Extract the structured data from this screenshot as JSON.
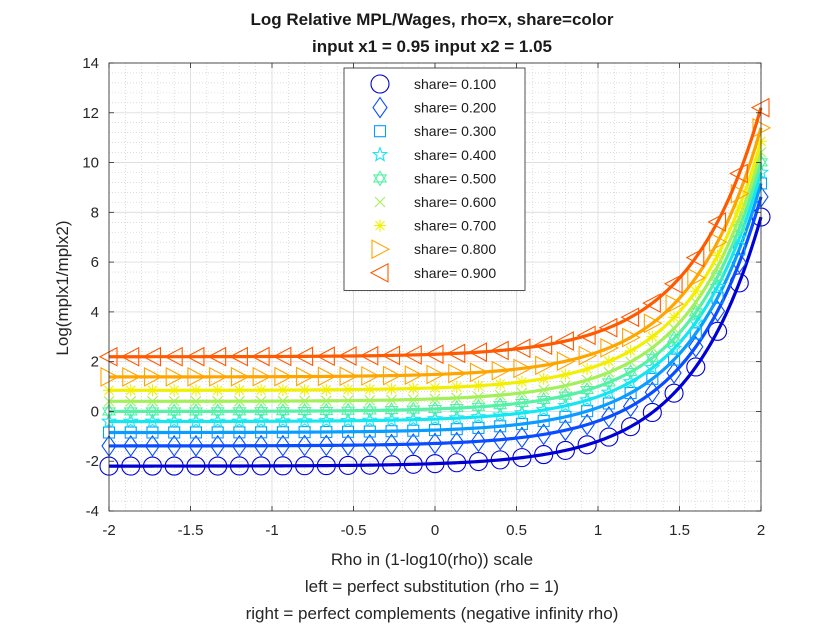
{
  "chart_data": {
    "type": "line",
    "title": [
      "Log Relative MPL/Wages, rho=x, share=color",
      "input x1 = 0.95 input x2 = 1.05"
    ],
    "xlabel": [
      "Rho in (1-log10(rho)) scale",
      "left = perfect substitution (rho = 1)",
      "right = perfect complements (negative infinity rho)"
    ],
    "ylabel": "Log(mplx1/mplx2)",
    "xlim": [
      -2,
      2
    ],
    "ylim": [
      -4,
      14
    ],
    "xticks": [
      -2,
      -1.5,
      -1,
      -0.5,
      0,
      0.5,
      1,
      1.5,
      2
    ],
    "yticks": [
      -4,
      -2,
      0,
      2,
      4,
      6,
      8,
      10,
      12,
      14
    ],
    "xticklabels": [
      "-2",
      "-1.5",
      "-1",
      "-0.5",
      "0",
      "0.5",
      "1",
      "1.5",
      "2"
    ],
    "yticklabels": [
      "-4",
      "-2",
      "0",
      "2",
      "4",
      "6",
      "8",
      "10",
      "12",
      "14"
    ],
    "grid": true,
    "minor_grid": true,
    "legend_position": "top-center",
    "x1": 0.95,
    "x2": 1.05,
    "series": [
      {
        "name": "share= 0.100",
        "share": 0.1,
        "marker": "circle",
        "color": "#0000d6"
      },
      {
        "name": "share= 0.200",
        "share": 0.2,
        "marker": "diamond",
        "color": "#0a4cff"
      },
      {
        "name": "share= 0.300",
        "share": 0.3,
        "marker": "square",
        "color": "#0a9cff"
      },
      {
        "name": "share= 0.400",
        "share": 0.4,
        "marker": "pentagram",
        "color": "#16e6f0"
      },
      {
        "name": "share= 0.500",
        "share": 0.5,
        "marker": "hexagram",
        "color": "#56f0a6"
      },
      {
        "name": "share= 0.600",
        "share": 0.6,
        "marker": "x",
        "color": "#a4f05a"
      },
      {
        "name": "share= 0.700",
        "share": 0.7,
        "marker": "asterisk",
        "color": "#f2f000"
      },
      {
        "name": "share= 0.800",
        "share": 0.8,
        "marker": "triangle-right",
        "color": "#ffa500"
      },
      {
        "name": "share= 0.900",
        "share": 0.9,
        "marker": "triangle-left",
        "color": "#ff5a00"
      }
    ]
  }
}
